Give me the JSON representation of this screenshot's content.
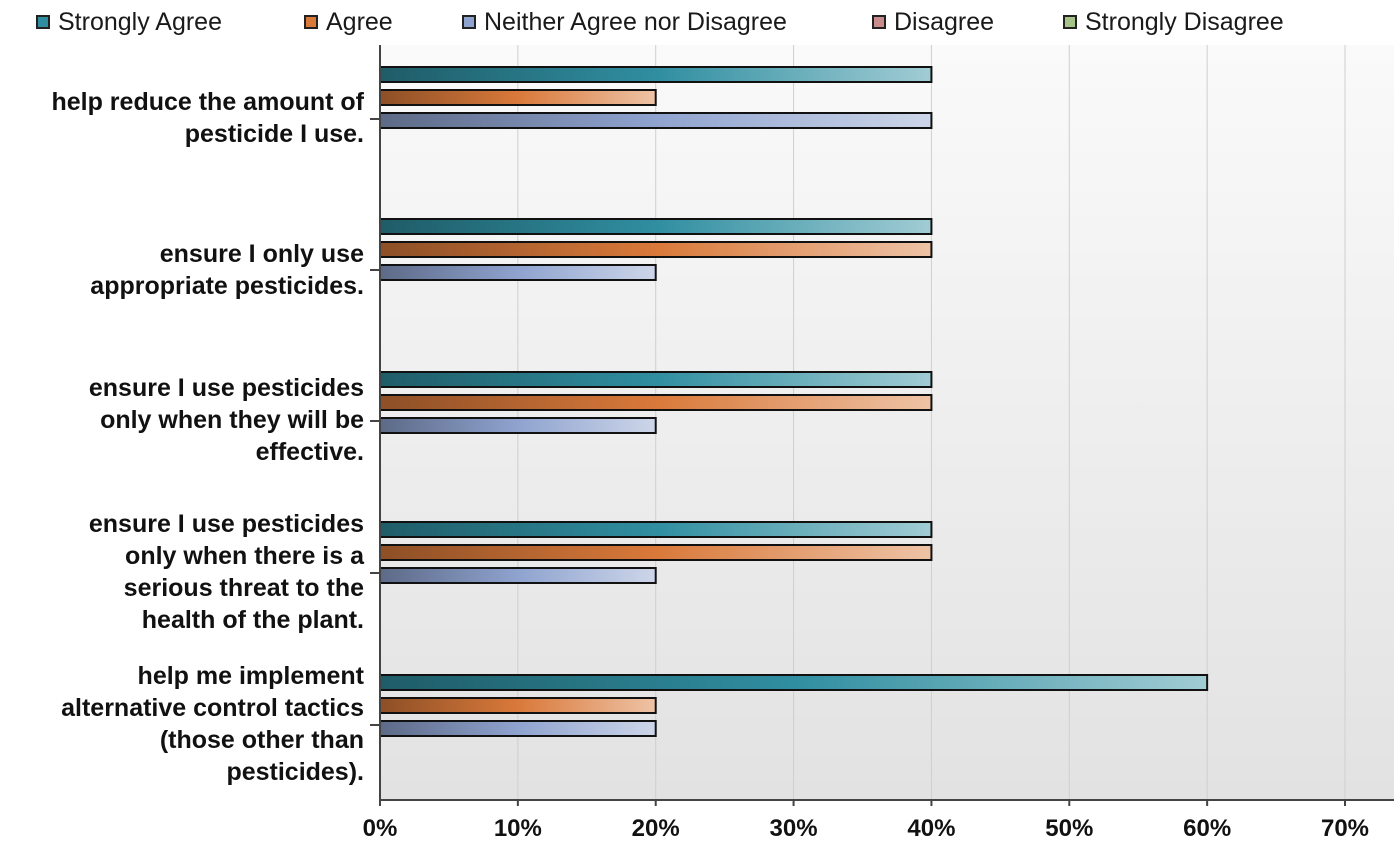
{
  "chart_data": {
    "type": "bar",
    "orientation": "horizontal",
    "categories": [
      [
        "help reduce the amount of",
        "pesticide I use."
      ],
      [
        "ensure I only use",
        "appropriate pesticides."
      ],
      [
        "ensure I use pesticides",
        "only when they will be",
        "effective."
      ],
      [
        "ensure I use pesticides",
        "only when there is a",
        "serious threat to the",
        "health of the plant."
      ],
      [
        "help me implement",
        "alternative control tactics",
        "(those other than",
        "pesticides)."
      ]
    ],
    "series": [
      {
        "name": "Strongly Agree",
        "color": "#2f8ea0",
        "values": [
          40,
          40,
          40,
          40,
          60
        ]
      },
      {
        "name": "Agree",
        "color": "#d9793a",
        "values": [
          20,
          40,
          40,
          40,
          20
        ]
      },
      {
        "name": "Neither Agree nor Disagree",
        "color": "#8fa3cf",
        "values": [
          40,
          20,
          20,
          20,
          20
        ]
      },
      {
        "name": "Disagree",
        "color": "#c98c8c",
        "values": [
          0,
          0,
          0,
          0,
          0
        ]
      },
      {
        "name": "Strongly Disagree",
        "color": "#a6c48a",
        "values": [
          0,
          0,
          0,
          0,
          0
        ]
      }
    ],
    "xlim": [
      0,
      70
    ],
    "xticks": [
      "0%",
      "10%",
      "20%",
      "30%",
      "40%",
      "50%",
      "60%",
      "70%"
    ],
    "grid": true,
    "legend_position": "top"
  }
}
